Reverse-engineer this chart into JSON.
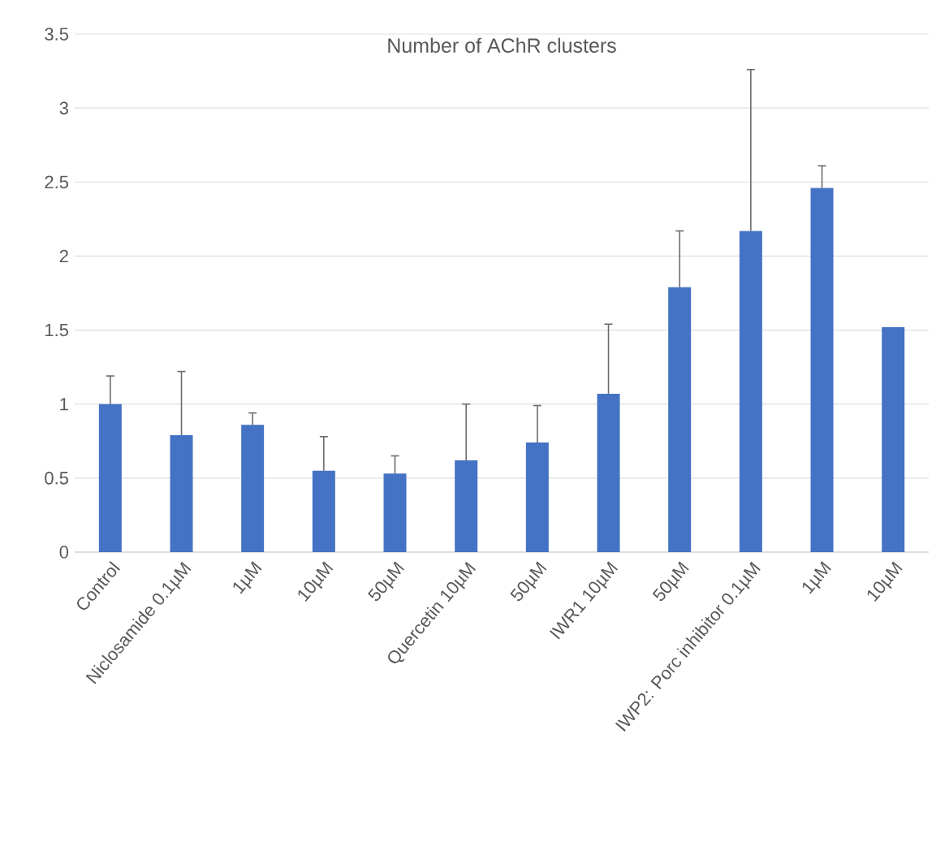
{
  "chart_data": {
    "type": "bar",
    "title": "Number of AChR clusters",
    "categories": [
      "Control",
      "Niclosamide 0.1µM",
      "1µM",
      "10µM",
      "50µM",
      "Quercetin 10µM",
      "50µM",
      "IWR1 10µM",
      "50µM",
      "IWP2: Porc inhibitor 0.1µM",
      "1µM",
      "10µM"
    ],
    "values": [
      1.0,
      0.79,
      0.86,
      0.55,
      0.53,
      0.62,
      0.74,
      1.07,
      1.79,
      2.17,
      2.46,
      1.52
    ],
    "errors": [
      [
        1.0,
        1.19
      ],
      [
        0.79,
        1.22
      ],
      [
        0.86,
        0.94
      ],
      [
        0.55,
        0.78
      ],
      [
        0.53,
        0.65
      ],
      [
        0.62,
        1.0
      ],
      [
        0.74,
        0.99
      ],
      [
        1.07,
        1.54
      ],
      [
        1.79,
        2.17
      ],
      [
        2.17,
        3.26
      ],
      [
        2.46,
        2.61
      ],
      null
    ],
    "color": "#4472c4",
    "ylim": [
      0,
      3.5
    ],
    "yticks": [
      0,
      0.5,
      1,
      1.5,
      2,
      2.5,
      3,
      3.5
    ],
    "grid": "y"
  }
}
